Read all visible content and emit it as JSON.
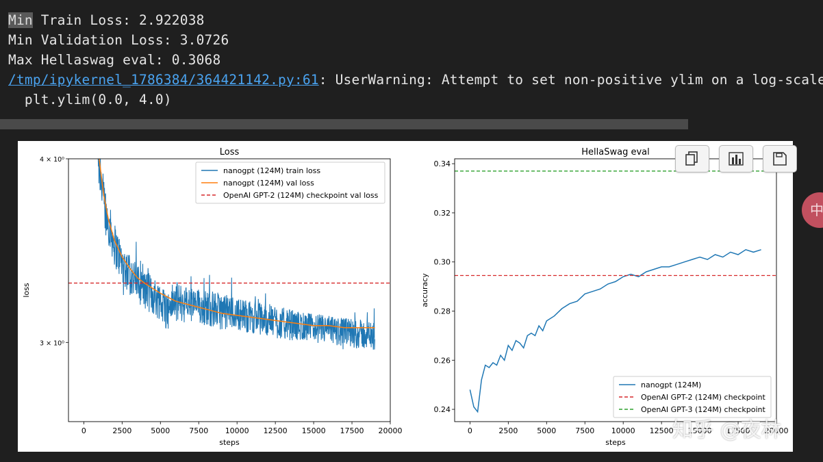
{
  "output": {
    "line1_hl": "Min",
    "line1_rest": " Train Loss: 2.922038",
    "line2": "Min Validation Loss: 3.0726",
    "line3": "Max Hellaswag eval: 0.3068",
    "warning_path": "/tmp/ipykernel_1786384/364421142.py:61",
    "warning_msg": ": UserWarning: Attempt to set non-positive ylim on a log-scaled a",
    "warning_code": "  plt.ylim(0.0, 4.0)"
  },
  "toolbar": {
    "copy_icon": "copy-icon",
    "chart_icon": "bar-chart-icon",
    "save_icon": "save-icon"
  },
  "float_button": {
    "label": "中"
  },
  "watermark": {
    "text": "知乎 @夜林"
  },
  "chart_data": [
    {
      "type": "line",
      "title": "Loss",
      "xlabel": "steps",
      "ylabel": "loss",
      "yscale": "log",
      "xlim": [
        -1000,
        20000
      ],
      "ylim": [
        2.65,
        4.0
      ],
      "xticks": [
        0,
        2500,
        5000,
        7500,
        10000,
        12500,
        15000,
        17500,
        20000
      ],
      "xtick_labels": [
        "0",
        "2500",
        "5000",
        "7500",
        "10000",
        "12500",
        "15000",
        "17500",
        "20000"
      ],
      "yticks": [
        3.0,
        4.0
      ],
      "ytick_labels": [
        "3 × 10⁰",
        "4 × 10⁰"
      ],
      "grid": false,
      "legend_position": "upper right",
      "series": [
        {
          "name": "nanogpt (124M) train loss",
          "color": "#1f77b4",
          "x": [
            700,
            1000,
            1300,
            1600,
            2000,
            2500,
            3000,
            3500,
            4000,
            4500,
            5000,
            5500,
            5700,
            6000,
            7000,
            8000,
            9000,
            10000,
            11000,
            12000,
            13000,
            14000,
            15000,
            16000,
            17000,
            18000,
            19000
          ],
          "y": [
            4.3,
            3.95,
            3.75,
            3.62,
            3.5,
            3.4,
            3.34,
            3.29,
            3.26,
            3.23,
            3.2,
            3.15,
            3.19,
            3.2,
            3.18,
            3.17,
            3.15,
            3.14,
            3.12,
            3.11,
            3.09,
            3.08,
            3.07,
            3.06,
            3.05,
            3.04,
            3.03
          ],
          "band": [
            0.14,
            0.14,
            0.13,
            0.12,
            0.12,
            0.11,
            0.11,
            0.1,
            0.1,
            0.1,
            0.1,
            0.1,
            0.1,
            0.1,
            0.09,
            0.09,
            0.09,
            0.08,
            0.08,
            0.08,
            0.08,
            0.07,
            0.07,
            0.07,
            0.07,
            0.07,
            0.07
          ]
        },
        {
          "name": "nanogpt (124M) val loss",
          "color": "#ff7f0e",
          "x": [
            1000,
            1300,
            1600,
            2000,
            2500,
            3000,
            3500,
            4000,
            5000,
            6000,
            7000,
            8000,
            9000,
            10000,
            11000,
            12000,
            13000,
            14000,
            15000,
            16000,
            17000,
            18000,
            19000
          ],
          "y": [
            4.0,
            3.78,
            3.64,
            3.52,
            3.43,
            3.37,
            3.32,
            3.29,
            3.24,
            3.2,
            3.18,
            3.16,
            3.14,
            3.13,
            3.12,
            3.11,
            3.1,
            3.09,
            3.08,
            3.08,
            3.07,
            3.07,
            3.07
          ]
        },
        {
          "name": "OpenAI GPT-2 (124M) checkpoint val loss",
          "color": "#d62728",
          "dashed": true,
          "hline": 3.2924
        }
      ]
    },
    {
      "type": "line",
      "title": "HellaSwag eval",
      "xlabel": "steps",
      "ylabel": "accuracy",
      "xlim": [
        -1000,
        20000
      ],
      "ylim": [
        0.235,
        0.342
      ],
      "xticks": [
        0,
        2500,
        5000,
        7500,
        10000,
        12500,
        15000,
        17500,
        20000
      ],
      "xtick_labels": [
        "0",
        "2500",
        "5000",
        "7500",
        "10000",
        "12500",
        "15000",
        "17500",
        "20000"
      ],
      "yticks": [
        0.24,
        0.26,
        0.28,
        0.3,
        0.32,
        0.34
      ],
      "ytick_labels": [
        "0.24",
        "0.26",
        "0.28",
        "0.30",
        "0.32",
        "0.34"
      ],
      "grid": false,
      "legend_position": "lower right",
      "series": [
        {
          "name": "nanogpt (124M)",
          "color": "#1f77b4",
          "x": [
            0,
            250,
            500,
            750,
            1000,
            1250,
            1500,
            1750,
            2000,
            2250,
            2500,
            2750,
            3000,
            3250,
            3500,
            3750,
            4000,
            4250,
            4500,
            4750,
            5000,
            5500,
            6000,
            6500,
            7000,
            7500,
            8000,
            8500,
            9000,
            9500,
            10000,
            10500,
            11000,
            11500,
            12000,
            12500,
            13000,
            13500,
            14000,
            14500,
            15000,
            15500,
            16000,
            16500,
            17000,
            17500,
            18000,
            18500,
            19000
          ],
          "y": [
            0.248,
            0.241,
            0.239,
            0.252,
            0.258,
            0.257,
            0.259,
            0.258,
            0.262,
            0.26,
            0.266,
            0.264,
            0.268,
            0.267,
            0.265,
            0.27,
            0.271,
            0.27,
            0.274,
            0.272,
            0.276,
            0.278,
            0.281,
            0.283,
            0.284,
            0.287,
            0.288,
            0.289,
            0.291,
            0.292,
            0.294,
            0.295,
            0.294,
            0.296,
            0.297,
            0.298,
            0.298,
            0.299,
            0.3,
            0.301,
            0.302,
            0.301,
            0.303,
            0.302,
            0.304,
            0.303,
            0.305,
            0.304,
            0.305
          ]
        },
        {
          "name": "OpenAI GPT-2 (124M) checkpoint",
          "color": "#d62728",
          "dashed": true,
          "hline": 0.2945
        },
        {
          "name": "OpenAI GPT-3 (124M) checkpoint",
          "color": "#2ca02c",
          "dashed": true,
          "hline": 0.337
        }
      ]
    }
  ]
}
